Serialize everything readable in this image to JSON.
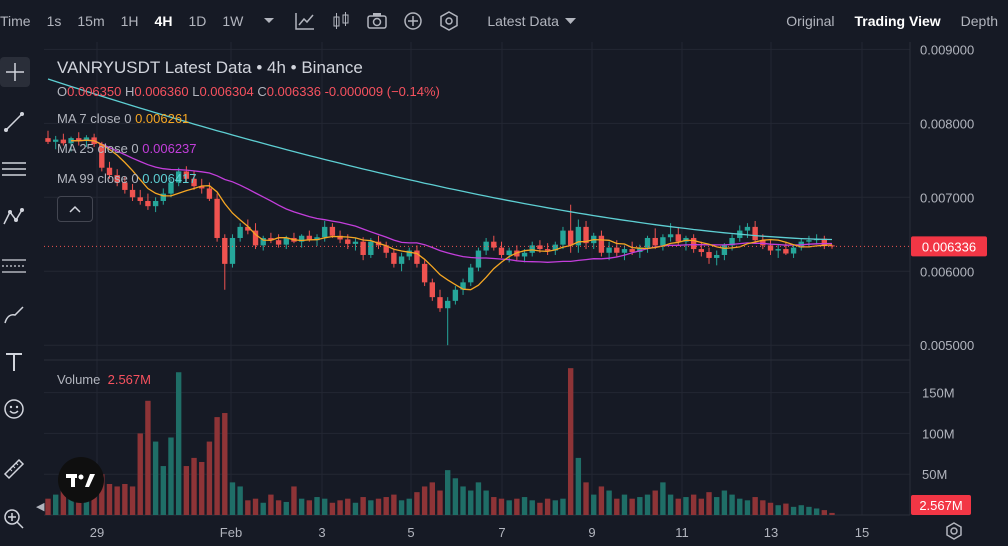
{
  "toolbar": {
    "time_label": "Time",
    "intervals": [
      "1s",
      "15m",
      "1H",
      "4H",
      "1D",
      "1W"
    ],
    "active_interval": "4H",
    "data_dropdown": "Latest Data",
    "views": [
      "Original",
      "Trading View",
      "Depth"
    ],
    "active_view": "Trading View",
    "icons": [
      "chevron-down-icon",
      "indicators-icon",
      "candle-type-icon",
      "camera-icon",
      "add-icon",
      "settings-icon"
    ]
  },
  "left_tools": [
    "crosshair-icon",
    "trend-line-icon",
    "horizontal-lines-icon",
    "pattern-icon",
    "fib-icon",
    "brush-icon",
    "text-icon",
    "emoji-icon",
    "ruler-icon",
    "zoom-icon"
  ],
  "legend": {
    "title": "VANRYUSDT Latest Data • 4h • Binance",
    "open_label": "O",
    "open": "0.006350",
    "high_label": "H",
    "high": "0.006360",
    "low_label": "L",
    "low": "0.006304",
    "close_label": "C",
    "close": "0.006336",
    "change": "-0.000009 (−0.14%)",
    "ma7_label": "MA 7 close 0",
    "ma7_value": "0.006261",
    "ma7_color": "#F5A623",
    "ma25_label": "MA 25 close 0",
    "ma25_value": "0.006237",
    "ma25_color": "#C33EDB",
    "ma99_label": "MA 99 close 0",
    "ma99_value": "0.006417",
    "ma99_color": "#5ECFD3"
  },
  "volume_legend": {
    "label": "Volume",
    "value": "2.567M"
  },
  "chart_data": {
    "type": "candlestick",
    "price_axis": {
      "ticks": [
        "0.009000",
        "0.008000",
        "0.007000",
        "0.006000",
        "0.005000"
      ],
      "ylim": [
        0.0048,
        0.0091
      ]
    },
    "volume_axis": {
      "ticks": [
        "150M",
        "100M",
        "50M"
      ],
      "ylim": [
        0,
        190
      ]
    },
    "x_ticks": [
      "29",
      "Feb",
      "3",
      "5",
      "7",
      "9",
      "11",
      "13",
      "15"
    ],
    "last_price": "0.006336",
    "last_volume": "2.567M",
    "up_color": "#26A69A",
    "down_color": "#EF5350",
    "candles": [
      [
        0.0078,
        0.0079,
        0.00772,
        0.00775,
        20
      ],
      [
        0.00775,
        0.00783,
        0.00765,
        0.00778,
        25
      ],
      [
        0.00778,
        0.00786,
        0.0077,
        0.00773,
        30
      ],
      [
        0.00773,
        0.00782,
        0.00762,
        0.0078,
        28
      ],
      [
        0.0078,
        0.00788,
        0.0077,
        0.00776,
        45
      ],
      [
        0.00776,
        0.00784,
        0.00768,
        0.00781,
        40
      ],
      [
        0.00781,
        0.00786,
        0.00768,
        0.00772,
        60
      ],
      [
        0.00772,
        0.00775,
        0.00735,
        0.0074,
        50
      ],
      [
        0.0074,
        0.00748,
        0.00725,
        0.0073,
        38
      ],
      [
        0.0073,
        0.00738,
        0.00715,
        0.0072,
        35
      ],
      [
        0.0072,
        0.00728,
        0.00705,
        0.0071,
        38
      ],
      [
        0.0071,
        0.00718,
        0.00695,
        0.007,
        35
      ],
      [
        0.007,
        0.0071,
        0.0069,
        0.00695,
        100
      ],
      [
        0.00695,
        0.00705,
        0.00683,
        0.00688,
        140
      ],
      [
        0.00688,
        0.007,
        0.0068,
        0.00695,
        90
      ],
      [
        0.00695,
        0.00712,
        0.0069,
        0.00705,
        60
      ],
      [
        0.00705,
        0.00725,
        0.007,
        0.0072,
        95
      ],
      [
        0.0072,
        0.0074,
        0.00715,
        0.00735,
        175
      ],
      [
        0.00735,
        0.00742,
        0.0072,
        0.00725,
        60
      ],
      [
        0.00725,
        0.00735,
        0.0071,
        0.00715,
        70
      ],
      [
        0.00715,
        0.00725,
        0.00705,
        0.00712,
        65
      ],
      [
        0.00712,
        0.0072,
        0.00695,
        0.00698,
        90
      ],
      [
        0.00698,
        0.00705,
        0.0064,
        0.00645,
        120
      ],
      [
        0.00645,
        0.0065,
        0.00575,
        0.0061,
        125
      ],
      [
        0.0061,
        0.0065,
        0.00605,
        0.00645,
        40
      ],
      [
        0.00645,
        0.00665,
        0.0064,
        0.0066,
        35
      ],
      [
        0.0066,
        0.0067,
        0.0065,
        0.00655,
        18
      ],
      [
        0.00655,
        0.00665,
        0.0063,
        0.00635,
        20
      ],
      [
        0.00635,
        0.00648,
        0.00628,
        0.00645,
        15
      ],
      [
        0.00645,
        0.00652,
        0.00638,
        0.00642,
        25
      ],
      [
        0.00642,
        0.0065,
        0.00632,
        0.00636,
        18
      ],
      [
        0.00636,
        0.00648,
        0.0063,
        0.00645,
        16
      ],
      [
        0.00645,
        0.00652,
        0.00638,
        0.0064,
        35
      ],
      [
        0.0064,
        0.0065,
        0.00632,
        0.00648,
        20
      ],
      [
        0.00648,
        0.00655,
        0.0064,
        0.00642,
        18
      ],
      [
        0.00642,
        0.0065,
        0.00634,
        0.00646,
        22
      ],
      [
        0.00646,
        0.00668,
        0.0064,
        0.0066,
        20
      ],
      [
        0.0066,
        0.00665,
        0.00645,
        0.00648,
        15
      ],
      [
        0.00648,
        0.00655,
        0.00638,
        0.00643,
        18
      ],
      [
        0.00643,
        0.0065,
        0.0063,
        0.00637,
        20
      ],
      [
        0.00637,
        0.00645,
        0.00628,
        0.0064,
        15
      ],
      [
        0.0064,
        0.00646,
        0.00615,
        0.00622,
        22
      ],
      [
        0.00622,
        0.00645,
        0.00618,
        0.0064,
        18
      ],
      [
        0.0064,
        0.00648,
        0.0063,
        0.00635,
        20
      ],
      [
        0.00635,
        0.0064,
        0.00618,
        0.00625,
        22
      ],
      [
        0.00625,
        0.0063,
        0.00605,
        0.0061,
        25
      ],
      [
        0.0061,
        0.00625,
        0.006,
        0.0062,
        18
      ],
      [
        0.0062,
        0.00632,
        0.00615,
        0.00628,
        20
      ],
      [
        0.00628,
        0.00635,
        0.00605,
        0.0061,
        28
      ],
      [
        0.0061,
        0.00615,
        0.0058,
        0.00585,
        35
      ],
      [
        0.00585,
        0.0059,
        0.0056,
        0.00565,
        40
      ],
      [
        0.00565,
        0.00575,
        0.00545,
        0.0055,
        30
      ],
      [
        0.0055,
        0.00565,
        0.005,
        0.0056,
        55
      ],
      [
        0.0056,
        0.0058,
        0.00555,
        0.00575,
        45
      ],
      [
        0.00575,
        0.0059,
        0.00568,
        0.00585,
        35
      ],
      [
        0.00585,
        0.0061,
        0.0058,
        0.00605,
        30
      ],
      [
        0.00605,
        0.00632,
        0.006,
        0.00628,
        40
      ],
      [
        0.00628,
        0.00645,
        0.00622,
        0.0064,
        30
      ],
      [
        0.0064,
        0.00648,
        0.00628,
        0.00632,
        22
      ],
      [
        0.00632,
        0.0064,
        0.00618,
        0.00622,
        20
      ],
      [
        0.00622,
        0.00632,
        0.00612,
        0.00628,
        18
      ],
      [
        0.00628,
        0.00635,
        0.00615,
        0.0062,
        20
      ],
      [
        0.0062,
        0.0063,
        0.00612,
        0.00625,
        22
      ],
      [
        0.00625,
        0.0064,
        0.0062,
        0.00635,
        18
      ],
      [
        0.00635,
        0.00642,
        0.00625,
        0.0063,
        15
      ],
      [
        0.0063,
        0.00638,
        0.00622,
        0.00628,
        20
      ],
      [
        0.00628,
        0.0064,
        0.00622,
        0.00636,
        18
      ],
      [
        0.00636,
        0.0066,
        0.0063,
        0.00655,
        20
      ],
      [
        0.00655,
        0.0069,
        0.00625,
        0.00635,
        180
      ],
      [
        0.00635,
        0.0067,
        0.00625,
        0.0066,
        70
      ],
      [
        0.0066,
        0.00668,
        0.0063,
        0.00638,
        40
      ],
      [
        0.00638,
        0.00652,
        0.0063,
        0.00648,
        25
      ],
      [
        0.00648,
        0.00655,
        0.0062,
        0.00625,
        35
      ],
      [
        0.00625,
        0.0064,
        0.00615,
        0.00632,
        30
      ],
      [
        0.00632,
        0.00642,
        0.0062,
        0.00625,
        20
      ],
      [
        0.00625,
        0.00635,
        0.00615,
        0.0063,
        25
      ],
      [
        0.0063,
        0.0064,
        0.00622,
        0.00626,
        20
      ],
      [
        0.00626,
        0.00636,
        0.00618,
        0.00632,
        22
      ],
      [
        0.00632,
        0.00648,
        0.00625,
        0.00645,
        25
      ],
      [
        0.00645,
        0.00658,
        0.0063,
        0.00635,
        30
      ],
      [
        0.00635,
        0.0065,
        0.00628,
        0.00646,
        40
      ],
      [
        0.00646,
        0.00665,
        0.0064,
        0.0065,
        25
      ],
      [
        0.0065,
        0.0066,
        0.00635,
        0.0064,
        20
      ],
      [
        0.0064,
        0.00648,
        0.00628,
        0.00645,
        22
      ],
      [
        0.00645,
        0.0065,
        0.00625,
        0.0063,
        25
      ],
      [
        0.0063,
        0.0064,
        0.0062,
        0.00626,
        20
      ],
      [
        0.00626,
        0.00632,
        0.0061,
        0.00618,
        28
      ],
      [
        0.00618,
        0.00628,
        0.00608,
        0.00622,
        22
      ],
      [
        0.00622,
        0.00638,
        0.00615,
        0.00635,
        30
      ],
      [
        0.00635,
        0.0065,
        0.00628,
        0.00645,
        25
      ],
      [
        0.00645,
        0.00662,
        0.0064,
        0.00655,
        20
      ],
      [
        0.00655,
        0.00665,
        0.00645,
        0.0066,
        18
      ],
      [
        0.0066,
        0.00668,
        0.00638,
        0.00642,
        22
      ],
      [
        0.00642,
        0.0065,
        0.0063,
        0.00635,
        18
      ],
      [
        0.00635,
        0.00642,
        0.00622,
        0.00628,
        15
      ],
      [
        0.00628,
        0.00636,
        0.00618,
        0.0063,
        12
      ],
      [
        0.0063,
        0.0064,
        0.00622,
        0.00624,
        14
      ],
      [
        0.00624,
        0.00635,
        0.00618,
        0.00632,
        10
      ],
      [
        0.00632,
        0.00645,
        0.00628,
        0.0064,
        12
      ],
      [
        0.0064,
        0.00648,
        0.00632,
        0.00642,
        10
      ],
      [
        0.00642,
        0.0065,
        0.00636,
        0.00644,
        8
      ],
      [
        0.00644,
        0.00648,
        0.0063,
        0.00634,
        6
      ],
      [
        0.00635,
        0.00636,
        0.006304,
        0.006336,
        2.567
      ]
    ]
  }
}
